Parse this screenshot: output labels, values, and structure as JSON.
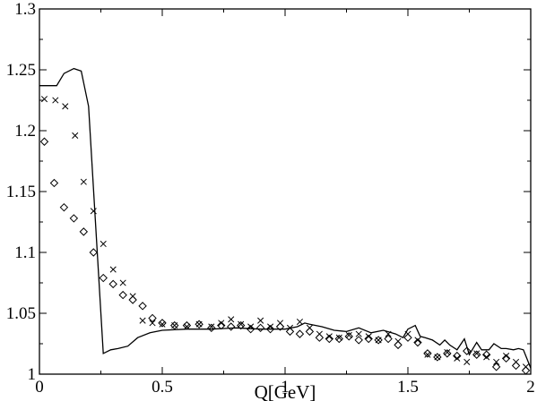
{
  "chart_data": {
    "type": "line",
    "title": "",
    "xlabel": "Q[GeV]",
    "ylabel": "",
    "xlim": [
      0,
      2
    ],
    "ylim": [
      1,
      1.3
    ],
    "x_ticks": [
      "0",
      "0.5",
      "1",
      "1.5",
      "2"
    ],
    "y_ticks": [
      "1",
      "1.05",
      "1.1",
      "1.15",
      "1.2",
      "1.25",
      "1.3"
    ],
    "grid": false,
    "legend": "none",
    "series": [
      {
        "style": "line",
        "color": "#000000",
        "x": [
          0.0,
          0.04,
          0.07,
          0.1,
          0.14,
          0.17,
          0.2,
          0.26,
          0.29,
          0.32,
          0.36,
          0.4,
          0.45,
          0.5,
          0.6,
          0.7,
          0.8,
          0.9,
          1.0,
          1.05,
          1.08,
          1.1,
          1.15,
          1.2,
          1.25,
          1.3,
          1.35,
          1.4,
          1.45,
          1.48,
          1.5,
          1.53,
          1.55,
          1.57,
          1.6,
          1.63,
          1.65,
          1.67,
          1.7,
          1.73,
          1.75,
          1.78,
          1.8,
          1.83,
          1.85,
          1.88,
          1.9,
          1.93,
          1.95,
          1.97,
          2.0
        ],
        "y": [
          1.237,
          1.237,
          1.237,
          1.247,
          1.251,
          1.249,
          1.22,
          1.017,
          1.02,
          1.021,
          1.023,
          1.03,
          1.034,
          1.036,
          1.037,
          1.037,
          1.038,
          1.037,
          1.037,
          1.039,
          1.042,
          1.041,
          1.039,
          1.036,
          1.035,
          1.038,
          1.034,
          1.036,
          1.033,
          1.03,
          1.037,
          1.04,
          1.031,
          1.03,
          1.028,
          1.024,
          1.028,
          1.024,
          1.02,
          1.029,
          1.016,
          1.026,
          1.02,
          1.02,
          1.025,
          1.021,
          1.021,
          1.02,
          1.021,
          1.02,
          1.005
        ]
      },
      {
        "style": "x-markers",
        "color": "#000000",
        "x": [
          0.02,
          0.065,
          0.105,
          0.145,
          0.18,
          0.22,
          0.26,
          0.3,
          0.34,
          0.38,
          0.42,
          0.46,
          0.5,
          0.55,
          0.6,
          0.65,
          0.7,
          0.74,
          0.78,
          0.82,
          0.86,
          0.9,
          0.94,
          0.98,
          1.02,
          1.06,
          1.1,
          1.14,
          1.18,
          1.22,
          1.26,
          1.3,
          1.34,
          1.38,
          1.42,
          1.46,
          1.5,
          1.54,
          1.58,
          1.62,
          1.66,
          1.7,
          1.74,
          1.78,
          1.82,
          1.86,
          1.9,
          1.94,
          1.98
        ],
        "y": [
          1.226,
          1.225,
          1.22,
          1.196,
          1.158,
          1.134,
          1.107,
          1.086,
          1.075,
          1.064,
          1.044,
          1.042,
          1.041,
          1.04,
          1.039,
          1.041,
          1.039,
          1.042,
          1.045,
          1.041,
          1.039,
          1.044,
          1.039,
          1.042,
          1.038,
          1.043,
          1.038,
          1.033,
          1.031,
          1.03,
          1.032,
          1.033,
          1.031,
          1.028,
          1.033,
          1.027,
          1.033,
          1.028,
          1.016,
          1.014,
          1.018,
          1.013,
          1.01,
          1.017,
          1.014,
          1.01,
          1.015,
          1.01,
          1.006
        ]
      },
      {
        "style": "diamond-markers",
        "color": "#000000",
        "x": [
          0.02,
          0.06,
          0.1,
          0.14,
          0.18,
          0.22,
          0.26,
          0.3,
          0.34,
          0.38,
          0.42,
          0.46,
          0.5,
          0.55,
          0.6,
          0.65,
          0.7,
          0.74,
          0.78,
          0.82,
          0.86,
          0.9,
          0.94,
          0.98,
          1.02,
          1.06,
          1.1,
          1.14,
          1.18,
          1.22,
          1.26,
          1.3,
          1.34,
          1.38,
          1.42,
          1.46,
          1.5,
          1.54,
          1.58,
          1.62,
          1.66,
          1.7,
          1.74,
          1.78,
          1.82,
          1.86,
          1.9,
          1.94,
          1.98
        ],
        "y": [
          1.191,
          1.157,
          1.137,
          1.128,
          1.117,
          1.1,
          1.079,
          1.074,
          1.065,
          1.061,
          1.056,
          1.046,
          1.042,
          1.04,
          1.04,
          1.041,
          1.038,
          1.04,
          1.039,
          1.04,
          1.037,
          1.038,
          1.037,
          1.039,
          1.035,
          1.033,
          1.035,
          1.03,
          1.029,
          1.029,
          1.031,
          1.028,
          1.029,
          1.028,
          1.029,
          1.024,
          1.03,
          1.026,
          1.017,
          1.014,
          1.017,
          1.015,
          1.019,
          1.016,
          1.016,
          1.006,
          1.013,
          1.007,
          1.003
        ]
      }
    ]
  }
}
